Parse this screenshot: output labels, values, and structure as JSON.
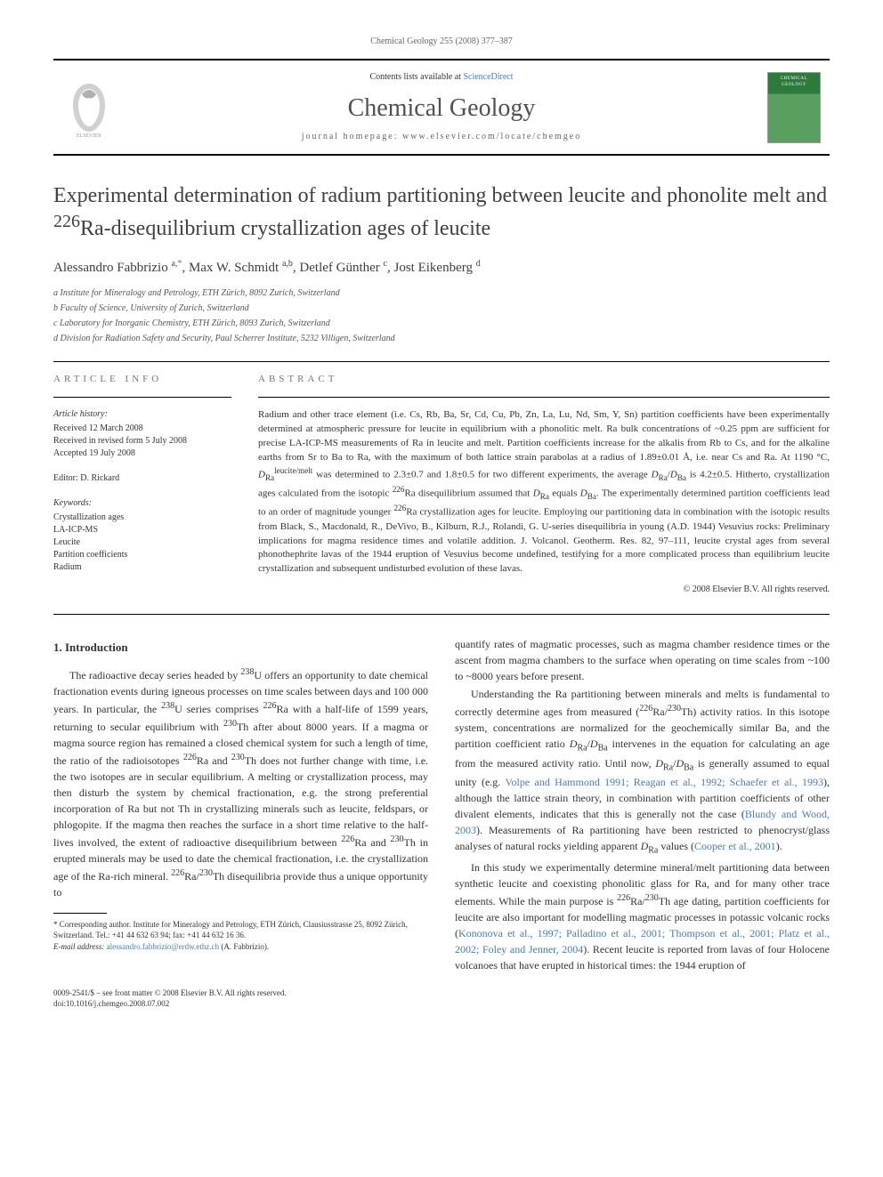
{
  "running_header": "Chemical Geology 255 (2008) 377–387",
  "banner": {
    "contents_prefix": "Contents lists available at ",
    "contents_link": "ScienceDirect",
    "journal_title": "Chemical Geology",
    "homepage_line": "journal homepage: www.elsevier.com/locate/chemgeo"
  },
  "article": {
    "title_html": "Experimental determination of radium partitioning between leucite and phonolite melt and <sup>226</sup>Ra-disequilibrium crystallization ages of leucite",
    "authors_html": "Alessandro Fabbrizio <sup>a,</sup><sup class=\"corr-star\">*</sup>, Max W. Schmidt <sup>a,b</sup>, Detlef Günther <sup>c</sup>, Jost Eikenberg <sup>d</sup>",
    "affiliations": [
      "a  Institute for Mineralogy and Petrology, ETH Zürich, 8092 Zurich, Switzerland",
      "b  Faculty of Science, University of Zurich, Switzerland",
      "c  Laboratory for Inorganic Chemistry, ETH Zürich, 8093 Zurich, Switzerland",
      "d  Division for Radiation Safety and Security, Paul Scherrer Institute, 5232 Villigen, Switzerland"
    ]
  },
  "info": {
    "article_info_label": "ARTICLE INFO",
    "abstract_label": "ABSTRACT",
    "history_title": "Article history:",
    "history": [
      "Received 12 March 2008",
      "Received in revised form 5 July 2008",
      "Accepted 19 July 2008"
    ],
    "editor_label": "Editor: D. Rickard",
    "keywords_title": "Keywords:",
    "keywords": [
      "Crystallization ages",
      "LA-ICP-MS",
      "Leucite",
      "Partition coefficients",
      "Radium"
    ]
  },
  "abstract_html": "Radium and other trace element (i.e. Cs, Rb, Ba, Sr, Cd, Cu, Pb, Zn, La, Lu, Nd, Sm, Y, Sn) partition coefficients have been experimentally determined at atmospheric pressure for leucite in equilibrium with a phonolitic melt. Ra bulk concentrations of ~0.25 ppm are sufficient for precise LA-ICP-MS measurements of Ra in leucite and melt. Partition coefficients increase for the alkalis from Rb to Cs, and for the alkaline earths from Sr to Ba to Ra, with the maximum of both lattice strain parabolas at a radius of 1.89±0.01 Å, i.e. near Cs and Ra. At 1190 °C, <i>D</i><sub>Ra</sub><sup>leucite/melt</sup> was determined to 2.3±0.7 and 1.8±0.5 for two different experiments, the average <i>D</i><sub>Ra</sub>/<i>D</i><sub>Ba</sub> is 4.2±0.5. Hitherto, crystallization ages calculated from the isotopic <sup>226</sup>Ra disequilibrium assumed that <i>D</i><sub>Ra</sub> equals <i>D</i><sub>Ba</sub>. The experimentally determined partition coefficients lead to an order of magnitude younger <sup>226</sup>Ra crystallization ages for leucite. Employing our partitioning data in combination with the isotopic results from Black, S., Macdonald, R., DeVivo, B., Kilburn, R.J., Rolandi, G. U-series disequilibria in young (A.D. 1944) Vesuvius rocks: Preliminary implications for magma residence times and volatile addition. J. Volcanol. Geotherm. Res. 82, 97–111, leucite crystal ages from several phonothephrite lavas of the 1944 eruption of Vesuvius become undefined, testifying for a more complicated process than equilibrium leucite crystallization and subsequent undisturbed evolution of these lavas.",
  "copyright": "© 2008 Elsevier B.V. All rights reserved.",
  "body": {
    "section1_title": "1. Introduction",
    "p1_html": "The radioactive decay series headed by <sup>238</sup>U offers an opportunity to date chemical fractionation events during igneous processes on time scales between days and 100 000 years. In particular, the <sup>238</sup>U series comprises <sup>226</sup>Ra with a half-life of 1599 years, returning to secular equilibrium with <sup>230</sup>Th after about 8000 years. If a magma or magma source region has remained a closed chemical system for such a length of time, the ratio of the radioisotopes <sup>226</sup>Ra and <sup>230</sup>Th does not further change with time, i.e. the two isotopes are in secular equilibrium. A melting or crystallization process, may then disturb the system by chemical fractionation, e.g. the strong preferential incorporation of Ra but not Th in crystallizing minerals such as leucite, feldspars, or phlogopite. If the magma then reaches the surface in a short time relative to the half-lives involved, the extent of radioactive disequilibrium between <sup>226</sup>Ra and <sup>230</sup>Th in erupted minerals may be used to date the chemical fractionation, i.e. the crystallization age of the Ra-rich mineral. <sup>226</sup>Ra/<sup>230</sup>Th disequilibria provide thus a unique opportunity to",
    "p2_html": "quantify rates of magmatic processes, such as magma chamber residence times or the ascent from magma chambers to the surface when operating on time scales from ~100 to ~8000 years before present.",
    "p3_html": "Understanding the Ra partitioning between minerals and melts is fundamental to correctly determine ages from measured (<sup>226</sup>Ra/<sup>230</sup>Th) activity ratios. In this isotope system, concentrations are normalized for the geochemically similar Ba, and the partition coefficient ratio <i>D</i><sub>Ra</sub>/<i>D</i><sub>Ba</sub> intervenes in the equation for calculating an age from the measured activity ratio. Until now, <i>D</i><sub>Ra</sub>/<i>D</i><sub>Ba</sub> is generally assumed to equal unity (e.g. <span class=\"cite-link\">Volpe and Hammond 1991; Reagan et al., 1992; Schaefer et al., 1993</span>), although the lattice strain theory, in combination with partition coefficients of other divalent elements, indicates that this is generally not the case (<span class=\"cite-link\">Blundy and Wood, 2003</span>). Measurements of Ra partitioning have been restricted to phenocryst/glass analyses of natural rocks yielding apparent <i>D</i><sub>Ra</sub> values (<span class=\"cite-link\">Cooper et al., 2001</span>).",
    "p4_html": "In this study we experimentally determine mineral/melt partitioning data between synthetic leucite and coexisting phonolitic glass for Ra, and for many other trace elements. While the main purpose is <sup>226</sup>Ra/<sup>230</sup>Th age dating, partition coefficients for leucite are also important for modelling magmatic processes in potassic volcanic rocks (<span class=\"cite-link\">Kononova et al., 1997; Palladino et al., 2001; Thompson et al., 2001; Platz et al., 2002; Foley and Jenner, 2004</span>). Recent leucite is reported from lavas of four Holocene volcanoes that have erupted in historical times: the 1944 eruption of"
  },
  "footnote": {
    "corr_html": "* Corresponding author. Institute for Mineralogy and Petrology, ETH Zürich, Clausiusstrasse 25, 8092 Zürich, Switzerland. Tel.: +41 44 632 63 94; fax: +41 44 632 16 36.",
    "email_label": "E-mail address:",
    "email": "alessandro.fabbrizio@erdw.ethz.ch",
    "email_suffix": "(A. Fabbrizio)."
  },
  "footer": {
    "line1": "0009-2541/$ – see front matter © 2008 Elsevier B.V. All rights reserved.",
    "line2": "doi:10.1016/j.chemgeo.2008.07.002"
  },
  "colors": {
    "link": "#4a7bb5",
    "text": "#333333",
    "muted": "#666666",
    "rule": "#000000"
  }
}
